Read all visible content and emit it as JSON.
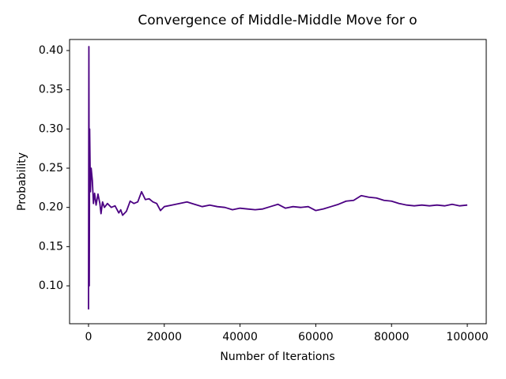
{
  "chart_data": {
    "type": "line",
    "title": "Convergence of Middle-Middle Move for o",
    "xlabel": "Number of Iterations",
    "ylabel": "Probability",
    "color": "#4b0082",
    "x": [
      0,
      100,
      200,
      300,
      500,
      700,
      1000,
      1300,
      1600,
      2000,
      2500,
      3000,
      3300,
      3700,
      4200,
      5000,
      6000,
      7000,
      8000,
      8500,
      9000,
      10000,
      11000,
      12000,
      13000,
      14000,
      15000,
      16000,
      17000,
      18000,
      19000,
      20000,
      22000,
      24000,
      26000,
      28000,
      30000,
      32000,
      34000,
      36000,
      38000,
      40000,
      42000,
      44000,
      46000,
      48000,
      50000,
      52000,
      54000,
      56000,
      58000,
      60000,
      62000,
      64000,
      66000,
      68000,
      70000,
      72000,
      74000,
      76000,
      78000,
      80000,
      82000,
      84000,
      86000,
      88000,
      90000,
      92000,
      94000,
      96000,
      98000,
      100000
    ],
    "values": [
      0.07,
      0.405,
      0.1,
      0.3,
      0.22,
      0.25,
      0.235,
      0.205,
      0.218,
      0.203,
      0.217,
      0.205,
      0.192,
      0.207,
      0.2,
      0.205,
      0.2,
      0.202,
      0.193,
      0.197,
      0.19,
      0.195,
      0.208,
      0.205,
      0.207,
      0.22,
      0.21,
      0.211,
      0.207,
      0.205,
      0.196,
      0.201,
      0.203,
      0.205,
      0.207,
      0.204,
      0.201,
      0.203,
      0.201,
      0.2,
      0.197,
      0.199,
      0.198,
      0.197,
      0.198,
      0.201,
      0.204,
      0.199,
      0.201,
      0.2,
      0.201,
      0.196,
      0.198,
      0.201,
      0.204,
      0.208,
      0.209,
      0.215,
      0.213,
      0.212,
      0.209,
      0.208,
      0.205,
      0.203,
      0.202,
      0.203,
      0.202,
      0.203,
      0.202,
      0.204,
      0.202,
      0.203
    ],
    "xlim": [
      -5000,
      105000
    ],
    "xticks": [
      0,
      20000,
      40000,
      60000,
      80000,
      100000
    ],
    "ylim": [
      0.0517,
      0.4141
    ],
    "yticks": [
      {
        "value": 0.1,
        "label": "0.10"
      },
      {
        "value": 0.15,
        "label": "0.15"
      },
      {
        "value": 0.2,
        "label": "0.20"
      },
      {
        "value": 0.25,
        "label": "0.25"
      },
      {
        "value": 0.3,
        "label": "0.30"
      },
      {
        "value": 0.35,
        "label": "0.35"
      },
      {
        "value": 0.4,
        "label": "0.40"
      }
    ],
    "grid": false
  }
}
